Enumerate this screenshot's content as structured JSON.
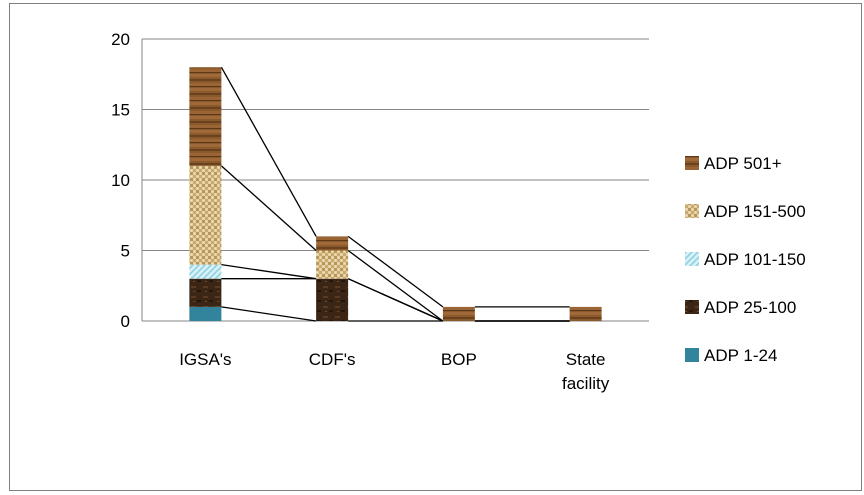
{
  "chart_data": {
    "type": "bar",
    "stacked": true,
    "series_lines": true,
    "title": "",
    "xlabel": "",
    "ylabel": "",
    "ylim": [
      0,
      20
    ],
    "yticks": [
      0,
      5,
      10,
      15,
      20
    ],
    "grid": true,
    "legend_position": "right",
    "categories": [
      "IGSA's",
      "CDF's",
      "BOP",
      "State facility"
    ],
    "series": [
      {
        "name": "ADP 1-24",
        "values": [
          1,
          0,
          0,
          0
        ],
        "color": "#31849b",
        "pattern": "solid-teal"
      },
      {
        "name": "ADP 25-100",
        "values": [
          2,
          3,
          0,
          0
        ],
        "color": "#3b2514",
        "pattern": "dark-wood"
      },
      {
        "name": "ADP 101-150",
        "values": [
          1,
          0,
          0,
          0
        ],
        "color": "#b7e4f0",
        "pattern": "light-blue-diagonal"
      },
      {
        "name": "ADP 151-500",
        "values": [
          7,
          2,
          0,
          0
        ],
        "color": "#d8c08a",
        "pattern": "burlap"
      },
      {
        "name": "ADP 501+",
        "values": [
          7,
          1,
          1,
          1
        ],
        "color": "#8b5a2b",
        "pattern": "wood-grain"
      }
    ]
  }
}
